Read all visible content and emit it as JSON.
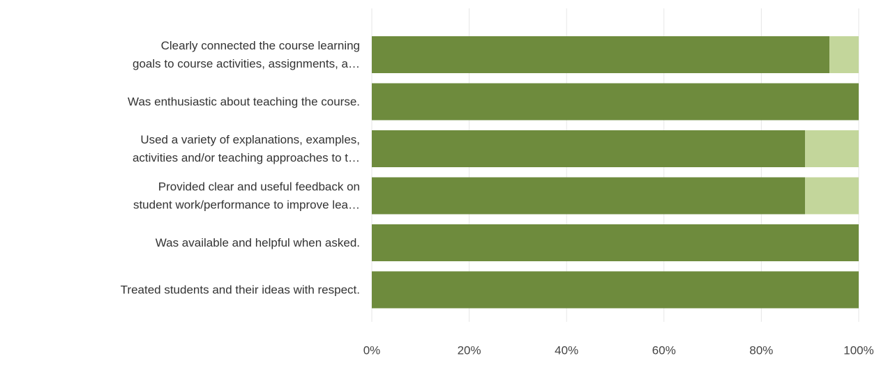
{
  "chart_data": {
    "type": "bar",
    "orientation": "horizontal",
    "stacked": true,
    "categories": [
      [
        "Clearly connected the course learning",
        "goals to course activities, assignments, a…"
      ],
      [
        "Was enthusiastic about teaching the course."
      ],
      [
        "Used a variety of explanations, examples,",
        "activities and/or teaching approaches to t…"
      ],
      [
        "Provided clear and useful feedback on",
        "student work/performance to improve lea…"
      ],
      [
        "Was available and helpful when asked."
      ],
      [
        "Treated students and their ideas with respect."
      ]
    ],
    "series": [
      {
        "values": [
          94,
          100,
          89,
          89,
          100,
          100
        ],
        "color": "#6e8b3d"
      },
      {
        "values": [
          6,
          0,
          11,
          11,
          0,
          0
        ],
        "color": "#c3d69b"
      }
    ],
    "xlim": [
      0,
      100
    ],
    "x_ticks": [
      "0%",
      "20%",
      "40%",
      "60%",
      "80%",
      "100%"
    ],
    "x_tick_values": [
      0,
      20,
      40,
      60,
      80,
      100
    ],
    "grid": true,
    "legend": "none",
    "title": "",
    "xlabel": "",
    "ylabel": ""
  }
}
